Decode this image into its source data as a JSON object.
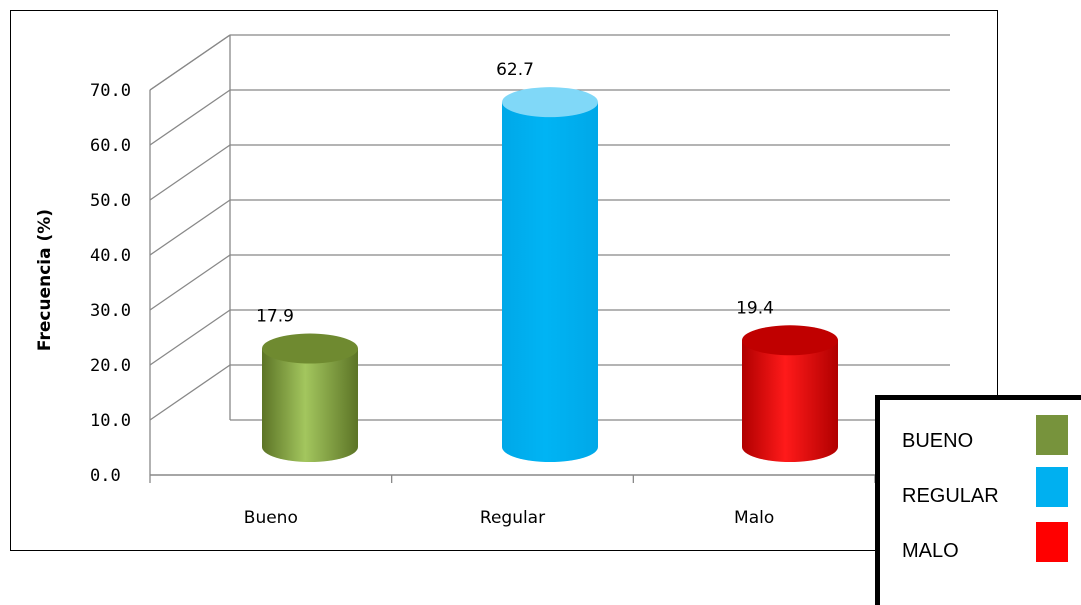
{
  "chart_data": {
    "type": "bar",
    "categories": [
      "Bueno",
      "Regular",
      "Malo"
    ],
    "values": [
      17.9,
      62.7,
      19.4
    ],
    "value_labels": [
      "17.9",
      "62.7",
      "19.4"
    ],
    "ylabel": "Frecuencia (%)",
    "xlabel": "",
    "ylim": [
      0,
      70
    ],
    "yticks": [
      "0.0",
      "10.0",
      "20.0",
      "30.0",
      "40.0",
      "50.0",
      "60.0",
      "70.0"
    ],
    "grid": true,
    "style": "3d-cylinder",
    "bar_colors": [
      "#7f9a3c",
      "#00b0f0",
      "#ff0000"
    ],
    "bar_top_colors": [
      "#6f8a30",
      "#80d8f8",
      "#c00000"
    ],
    "legend": {
      "placement": "bottom-right",
      "entries": [
        {
          "label": "BUENO",
          "color": "#77933c"
        },
        {
          "label": "REGULAR",
          "color": "#00b0f0"
        },
        {
          "label": "MALO",
          "color": "#ff0000"
        }
      ]
    }
  }
}
